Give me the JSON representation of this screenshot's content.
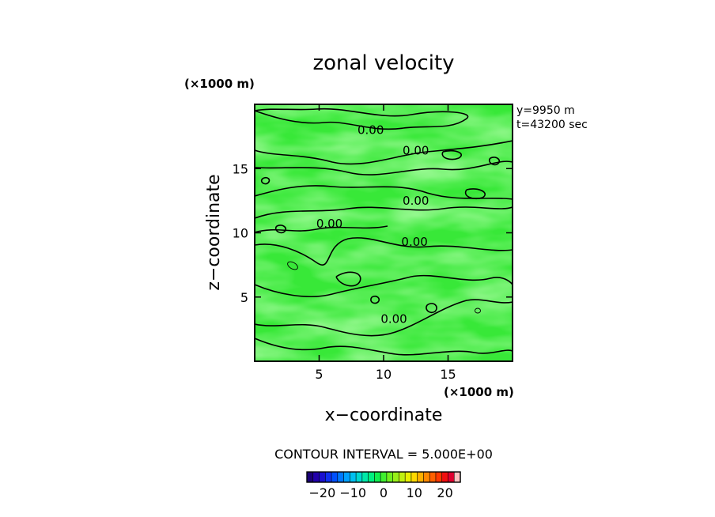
{
  "chart_data": {
    "type": "heatmap",
    "title": "zonal velocity",
    "xlabel": "x−coordinate",
    "ylabel": "z−coordinate",
    "x_unit": "(×1000 m)",
    "y_unit": "(×1000 m)",
    "xlim": [
      0,
      20
    ],
    "ylim": [
      0,
      20
    ],
    "x_ticks": [
      5,
      10,
      15
    ],
    "y_ticks": [
      5,
      10,
      15
    ],
    "x_tick_labels": [
      "5",
      "10",
      "15"
    ],
    "y_tick_labels": [
      "5",
      "10",
      "15"
    ],
    "info_lines": [
      "y=9950  m",
      "t=43200 sec"
    ],
    "contour_interval_text": "CONTOUR INTERVAL = 5.000E+00",
    "contour_labels": [
      {
        "x": 9.0,
        "z": 18.0,
        "text": "0.00"
      },
      {
        "x": 12.5,
        "z": 16.4,
        "text": "0.00"
      },
      {
        "x": 12.5,
        "z": 12.5,
        "text": "0.00"
      },
      {
        "x": 5.8,
        "z": 10.7,
        "text": "0.00"
      },
      {
        "x": 12.4,
        "z": 9.3,
        "text": "0.00"
      },
      {
        "x": 10.8,
        "z": 3.3,
        "text": "0.00"
      }
    ],
    "colorbar": {
      "min": -25,
      "max": 25,
      "colors": [
        "#1a0078",
        "#2200aa",
        "#1a10d0",
        "#1030f0",
        "#0050ff",
        "#0078ff",
        "#00a0ff",
        "#00c0f0",
        "#00d8d0",
        "#00e8a8",
        "#00f080",
        "#10f050",
        "#40f030",
        "#70f020",
        "#98f018",
        "#c0f010",
        "#e8f000",
        "#ffd800",
        "#ffb000",
        "#ff8800",
        "#ff6000",
        "#ff3800",
        "#f01010",
        "#e00030",
        "#ffc0c0"
      ],
      "ticks": [
        -20,
        -10,
        0,
        10,
        20
      ],
      "tick_labels": [
        "−20",
        "−10",
        "0",
        "10",
        "20"
      ]
    }
  }
}
